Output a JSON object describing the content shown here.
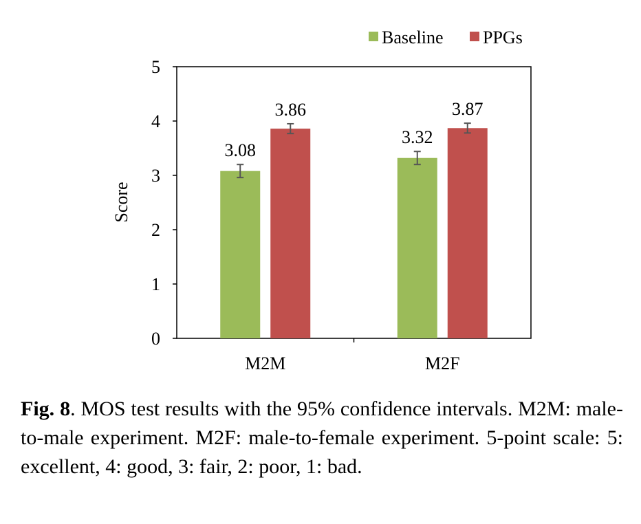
{
  "chart_data": {
    "type": "bar",
    "categories": [
      "M2M",
      "M2F"
    ],
    "series": [
      {
        "name": "Baseline",
        "color": "#9bbb59",
        "values": [
          3.08,
          3.32
        ],
        "err": [
          0.12,
          0.12
        ]
      },
      {
        "name": "PPGs",
        "color": "#c0504d",
        "values": [
          3.86,
          3.87
        ],
        "err": [
          0.09,
          0.09
        ]
      }
    ],
    "value_labels": [
      [
        "3.08",
        "3.32"
      ],
      [
        "3.86",
        "3.87"
      ]
    ],
    "ylabel": "Score",
    "xlabel": "",
    "ylim": [
      0,
      5
    ],
    "yticks": [
      "0",
      "1",
      "2",
      "3",
      "4",
      "5"
    ],
    "legend": "top-right",
    "grid": false
  },
  "caption": {
    "label": "Fig. 8",
    "text": ".  MOS test results with the 95% confidence intervals. M2M: male-to-male experiment.   M2F: male-to-female experiment. 5-point scale: 5: excellent, 4: good, 3: fair, 2: poor, 1: bad."
  }
}
